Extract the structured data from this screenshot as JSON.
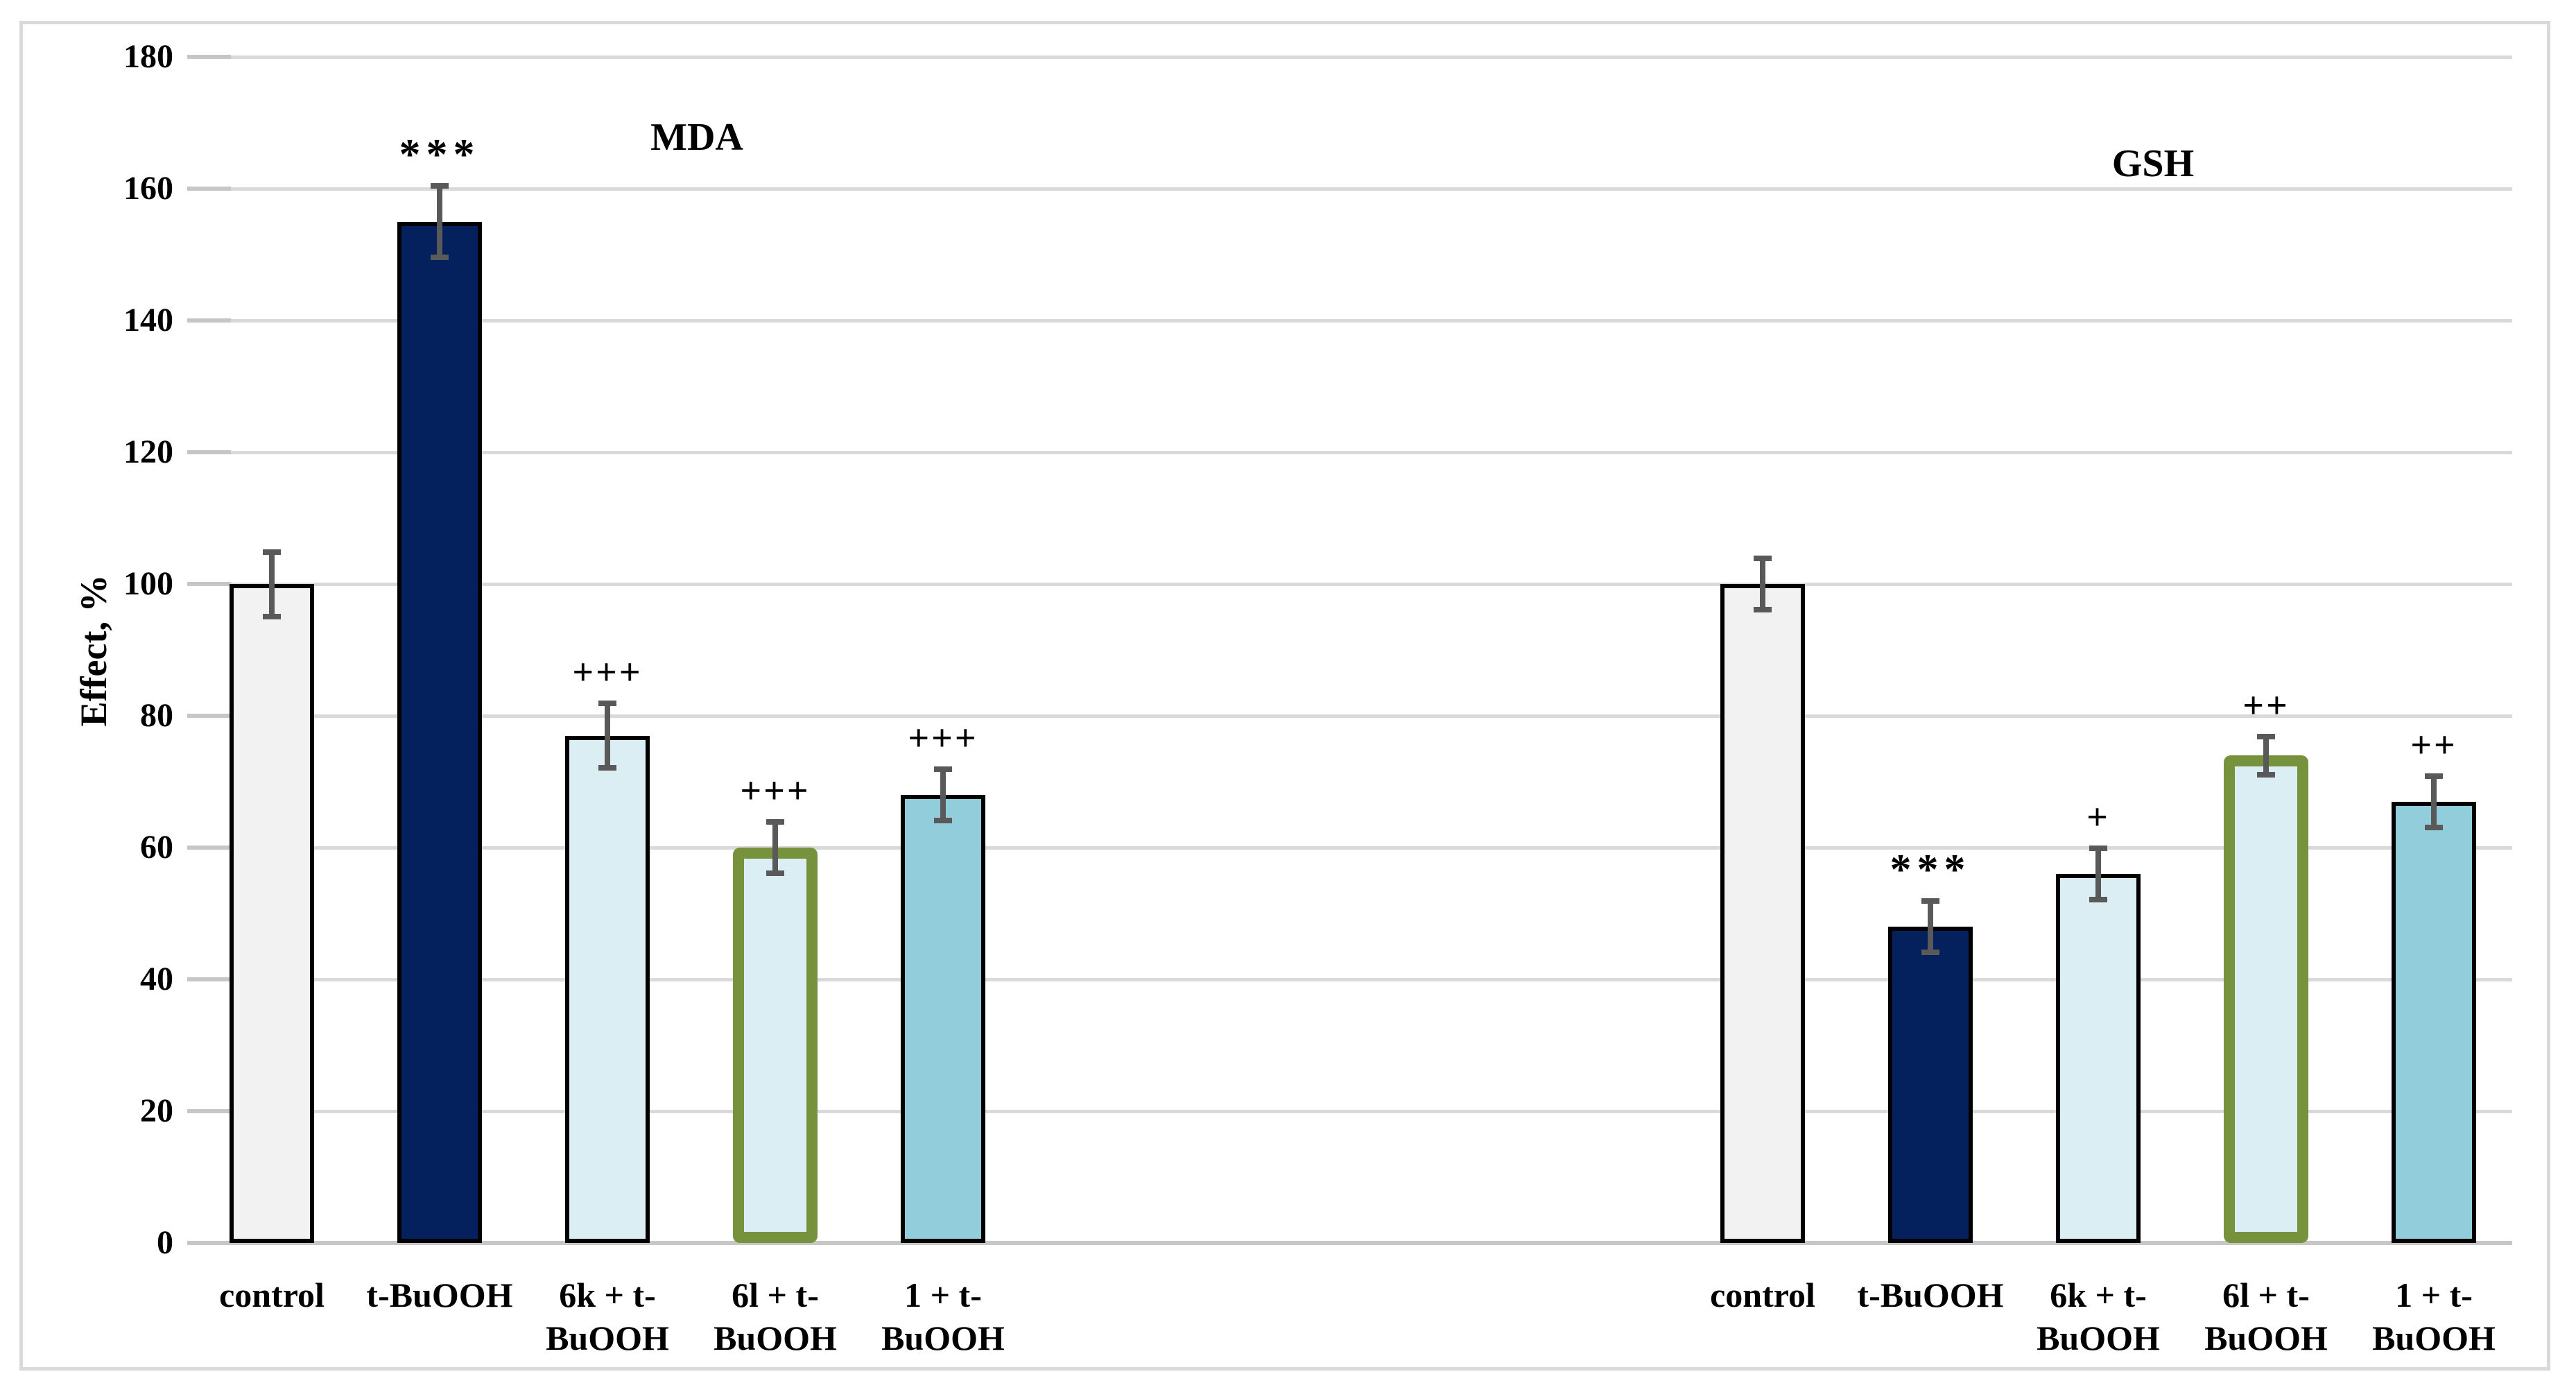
{
  "figure": {
    "background": "#ffffff",
    "border_color": "#d9d9d9"
  },
  "chart_data": {
    "type": "bar",
    "title": "",
    "ylabel": "Effect, %",
    "xlabel": "",
    "ylim": [
      0,
      180
    ],
    "ytick_step": 20,
    "ytick_labels": [
      "0",
      "20",
      "40",
      "60",
      "80",
      "100",
      "120",
      "140",
      "160",
      "180"
    ],
    "grid": true,
    "legend": "none",
    "gridline_color": "#d9d9d9",
    "axis_color": "#c6c6c6",
    "error_bar_color": "#595959",
    "highlight_border_color": "#76923c",
    "groups": [
      {
        "title": "MDA",
        "categories": [
          "control",
          "t-BuOOH",
          "6k + t-BuOOH",
          "6l + t-BuOOH",
          "1 + t-BuOOH"
        ],
        "bars": [
          {
            "label_lines": [
              "control"
            ],
            "value": 100,
            "error": 5,
            "fill": "#f2f2f2",
            "border": "#000000",
            "annotation": ""
          },
          {
            "label_lines": [
              "t-BuOOH"
            ],
            "value": 155,
            "error": 5.5,
            "fill": "#04215e",
            "border": "#000000",
            "annotation": "***"
          },
          {
            "label_lines": [
              "6k + t-",
              "BuOOH"
            ],
            "value": 77,
            "error": 5,
            "fill": "#daeef3",
            "border": "#000000",
            "annotation": "+++"
          },
          {
            "label_lines": [
              "6l + t-",
              "BuOOH"
            ],
            "value": 60,
            "error": 4,
            "fill": "#daeef3",
            "border": "#76923c",
            "annotation": "+++"
          },
          {
            "label_lines": [
              "1 + t-",
              "BuOOH"
            ],
            "value": 68,
            "error": 4,
            "fill": "#92cddc",
            "border": "#000000",
            "annotation": "+++"
          }
        ]
      },
      {
        "title": "GSH",
        "categories": [
          "control",
          "t-BuOOH",
          "6k + t-BuOOH",
          "6l + t-BuOOH",
          "1 + t-BuOOH"
        ],
        "bars": [
          {
            "label_lines": [
              "control"
            ],
            "value": 100,
            "error": 4,
            "fill": "#f2f2f2",
            "border": "#000000",
            "annotation": ""
          },
          {
            "label_lines": [
              "t-BuOOH"
            ],
            "value": 48,
            "error": 4,
            "fill": "#04215e",
            "border": "#000000",
            "annotation": "***"
          },
          {
            "label_lines": [
              "6k + t-",
              "BuOOH"
            ],
            "value": 56,
            "error": 4,
            "fill": "#daeef3",
            "border": "#000000",
            "annotation": "+"
          },
          {
            "label_lines": [
              "6l + t-",
              "BuOOH"
            ],
            "value": 74,
            "error": 3,
            "fill": "#daeef3",
            "border": "#76923c",
            "annotation": "++"
          },
          {
            "label_lines": [
              "1 + t-",
              "BuOOH"
            ],
            "value": 67,
            "error": 4,
            "fill": "#92cddc",
            "border": "#000000",
            "annotation": "++"
          }
        ]
      }
    ]
  }
}
